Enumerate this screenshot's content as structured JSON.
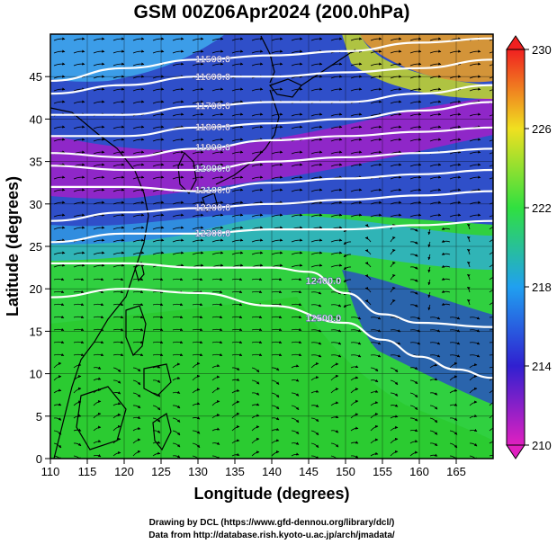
{
  "title": "GSM 00Z06Apr2024 (200.0hPa)",
  "x_axis": {
    "label": "Longitude (degrees)",
    "range": [
      110,
      170
    ],
    "ticks": [
      "110",
      "115",
      "120",
      "125",
      "130",
      "135",
      "140",
      "145",
      "150",
      "155",
      "160",
      "165"
    ]
  },
  "y_axis": {
    "label": "Latitude (degrees)",
    "range": [
      0,
      50
    ],
    "ticks": [
      "0",
      "5",
      "10",
      "15",
      "20",
      "25",
      "30",
      "35",
      "40",
      "45"
    ]
  },
  "colorbar": {
    "range": [
      210,
      230
    ],
    "ticks": [
      "210",
      "214",
      "218",
      "222",
      "226",
      "230"
    ],
    "colors": [
      "#e020c0",
      "#3020d0",
      "#20a0f0",
      "#30e040",
      "#f0e020",
      "#f02020"
    ]
  },
  "contours": [
    {
      "value": 11500.0,
      "label": "11500.0",
      "points": [
        [
          110,
          44.5
        ],
        [
          120,
          46
        ],
        [
          130,
          47
        ],
        [
          140,
          47.5
        ],
        [
          150,
          48
        ],
        [
          160,
          49
        ],
        [
          170,
          49.5
        ]
      ]
    },
    {
      "value": 11600.0,
      "label": "11600.0",
      "points": [
        [
          110,
          43
        ],
        [
          120,
          44
        ],
        [
          130,
          45
        ],
        [
          140,
          45
        ],
        [
          150,
          45.5
        ],
        [
          160,
          46
        ],
        [
          170,
          47
        ]
      ]
    },
    {
      "value": 11700.0,
      "label": "11700.0",
      "points": [
        [
          110,
          40.5
        ],
        [
          120,
          40.5
        ],
        [
          130,
          41.5
        ],
        [
          140,
          42
        ],
        [
          150,
          42
        ],
        [
          160,
          43
        ],
        [
          170,
          44
        ]
      ]
    },
    {
      "value": 11800.0,
      "label": "11800.0",
      "points": [
        [
          110,
          38
        ],
        [
          120,
          38
        ],
        [
          130,
          39
        ],
        [
          140,
          39.5
        ],
        [
          150,
          40
        ],
        [
          160,
          41
        ],
        [
          170,
          42
        ]
      ]
    },
    {
      "value": 11900.0,
      "label": "11900.0",
      "points": [
        [
          110,
          36
        ],
        [
          120,
          35.5
        ],
        [
          130,
          36.5
        ],
        [
          140,
          37.5
        ],
        [
          150,
          38
        ],
        [
          160,
          38.5
        ],
        [
          170,
          39
        ]
      ]
    },
    {
      "value": 12000.0,
      "label": "12000.0",
      "points": [
        [
          110,
          34.5
        ],
        [
          120,
          34
        ],
        [
          130,
          34
        ],
        [
          140,
          35
        ],
        [
          150,
          35.5
        ],
        [
          160,
          36
        ],
        [
          170,
          36.5
        ]
      ]
    },
    {
      "value": 12100.0,
      "label": "12100.0",
      "points": [
        [
          110,
          32
        ],
        [
          120,
          32
        ],
        [
          130,
          31.5
        ],
        [
          140,
          32.5
        ],
        [
          150,
          33
        ],
        [
          160,
          33.5
        ],
        [
          170,
          34
        ]
      ]
    },
    {
      "value": 12200.0,
      "label": "12200.0",
      "points": [
        [
          110,
          28
        ],
        [
          120,
          29
        ],
        [
          130,
          29.5
        ],
        [
          140,
          30
        ],
        [
          150,
          30.5
        ],
        [
          160,
          31
        ],
        [
          170,
          31.5
        ]
      ]
    },
    {
      "value": 12300.0,
      "label": "12300.0",
      "points": [
        [
          110,
          25.5
        ],
        [
          120,
          26.5
        ],
        [
          130,
          26.5
        ],
        [
          140,
          27
        ],
        [
          150,
          27
        ],
        [
          160,
          27.5
        ],
        [
          170,
          28
        ]
      ]
    },
    {
      "value": 12400.0,
      "label": "12400.0",
      "points": [
        [
          110,
          23
        ],
        [
          120,
          23
        ],
        [
          130,
          22.5
        ],
        [
          140,
          22.5
        ],
        [
          145,
          22
        ],
        [
          150,
          19.5
        ],
        [
          155,
          17
        ],
        [
          160,
          16
        ],
        [
          170,
          15.5
        ]
      ]
    },
    {
      "value": 12500.0,
      "label": "12500.0",
      "points": [
        [
          110,
          19
        ],
        [
          120,
          20
        ],
        [
          130,
          19.5
        ],
        [
          140,
          18
        ],
        [
          150,
          16
        ],
        [
          155,
          14
        ],
        [
          160,
          12
        ],
        [
          165,
          10.5
        ],
        [
          170,
          9.5
        ]
      ]
    }
  ],
  "credits": [
    "Drawing by DCL (https://www.gfd-dennou.org/library/dcl/)",
    "Data from http://database.rish.kyoto-u.ac.jp/arch/jmadata/"
  ]
}
